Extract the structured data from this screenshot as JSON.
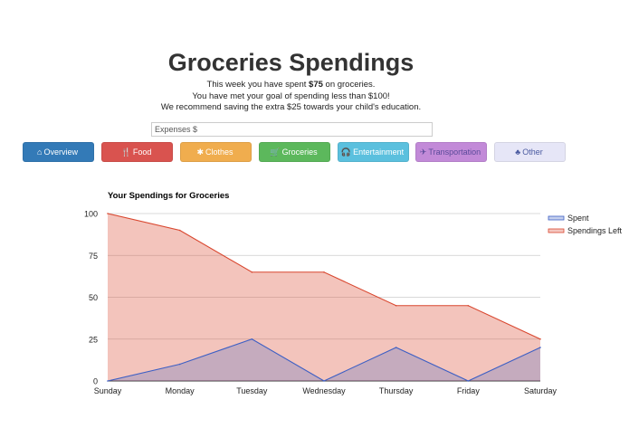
{
  "header": {
    "title": "Groceries Spendings",
    "line1_pre": "This week you have spent ",
    "line1_bold": "$75",
    "line1_post": " on groceries.",
    "line2": "You have met your goal of spending less than $100!",
    "line3": "We recommend saving the extra $25 towards your child's education."
  },
  "input": {
    "placeholder": "Expenses $"
  },
  "nav": [
    {
      "label": "Overview",
      "icon": "home-icon",
      "glyph": "⌂",
      "color": "#337ab7",
      "text": "#ffffff"
    },
    {
      "label": "Food",
      "icon": "cutlery-icon",
      "glyph": "🍴",
      "color": "#d9534f",
      "text": "#ffffff"
    },
    {
      "label": "Clothes",
      "icon": "asterisk-icon",
      "glyph": "✱",
      "color": "#f0ad4e",
      "text": "#ffffff"
    },
    {
      "label": "Groceries",
      "icon": "shopping-cart-icon",
      "glyph": "🛒",
      "color": "#5cb85c",
      "text": "#ffffff"
    },
    {
      "label": "Entertainment",
      "icon": "headphones-icon",
      "glyph": "🎧",
      "color": "#5bc0de",
      "text": "#ffffff"
    },
    {
      "label": "Transportation",
      "icon": "plane-icon",
      "glyph": "✈",
      "color": "#c28ad8",
      "text": "#5a4a9a"
    },
    {
      "label": "Other",
      "icon": "tree-icon",
      "glyph": "♣",
      "color": "#e6e6f7",
      "text": "#4a5aa0"
    }
  ],
  "chart_data": {
    "type": "area",
    "title": "Your Spendings for Groceries",
    "categories": [
      "Sunday",
      "Monday",
      "Tuesday",
      "Wednesday",
      "Thursday",
      "Friday",
      "Saturday"
    ],
    "ylim": [
      0,
      100
    ],
    "yticks": [
      0,
      25,
      50,
      75,
      100
    ],
    "grid": true,
    "legend": "right",
    "series": [
      {
        "name": "Spent",
        "values": [
          0,
          10,
          25,
          0,
          20,
          0,
          20
        ],
        "color": "#3d5fc4"
      },
      {
        "name": "Spendings Left",
        "values": [
          100,
          90,
          65,
          65,
          45,
          45,
          25
        ],
        "color": "#d9472f"
      }
    ]
  }
}
